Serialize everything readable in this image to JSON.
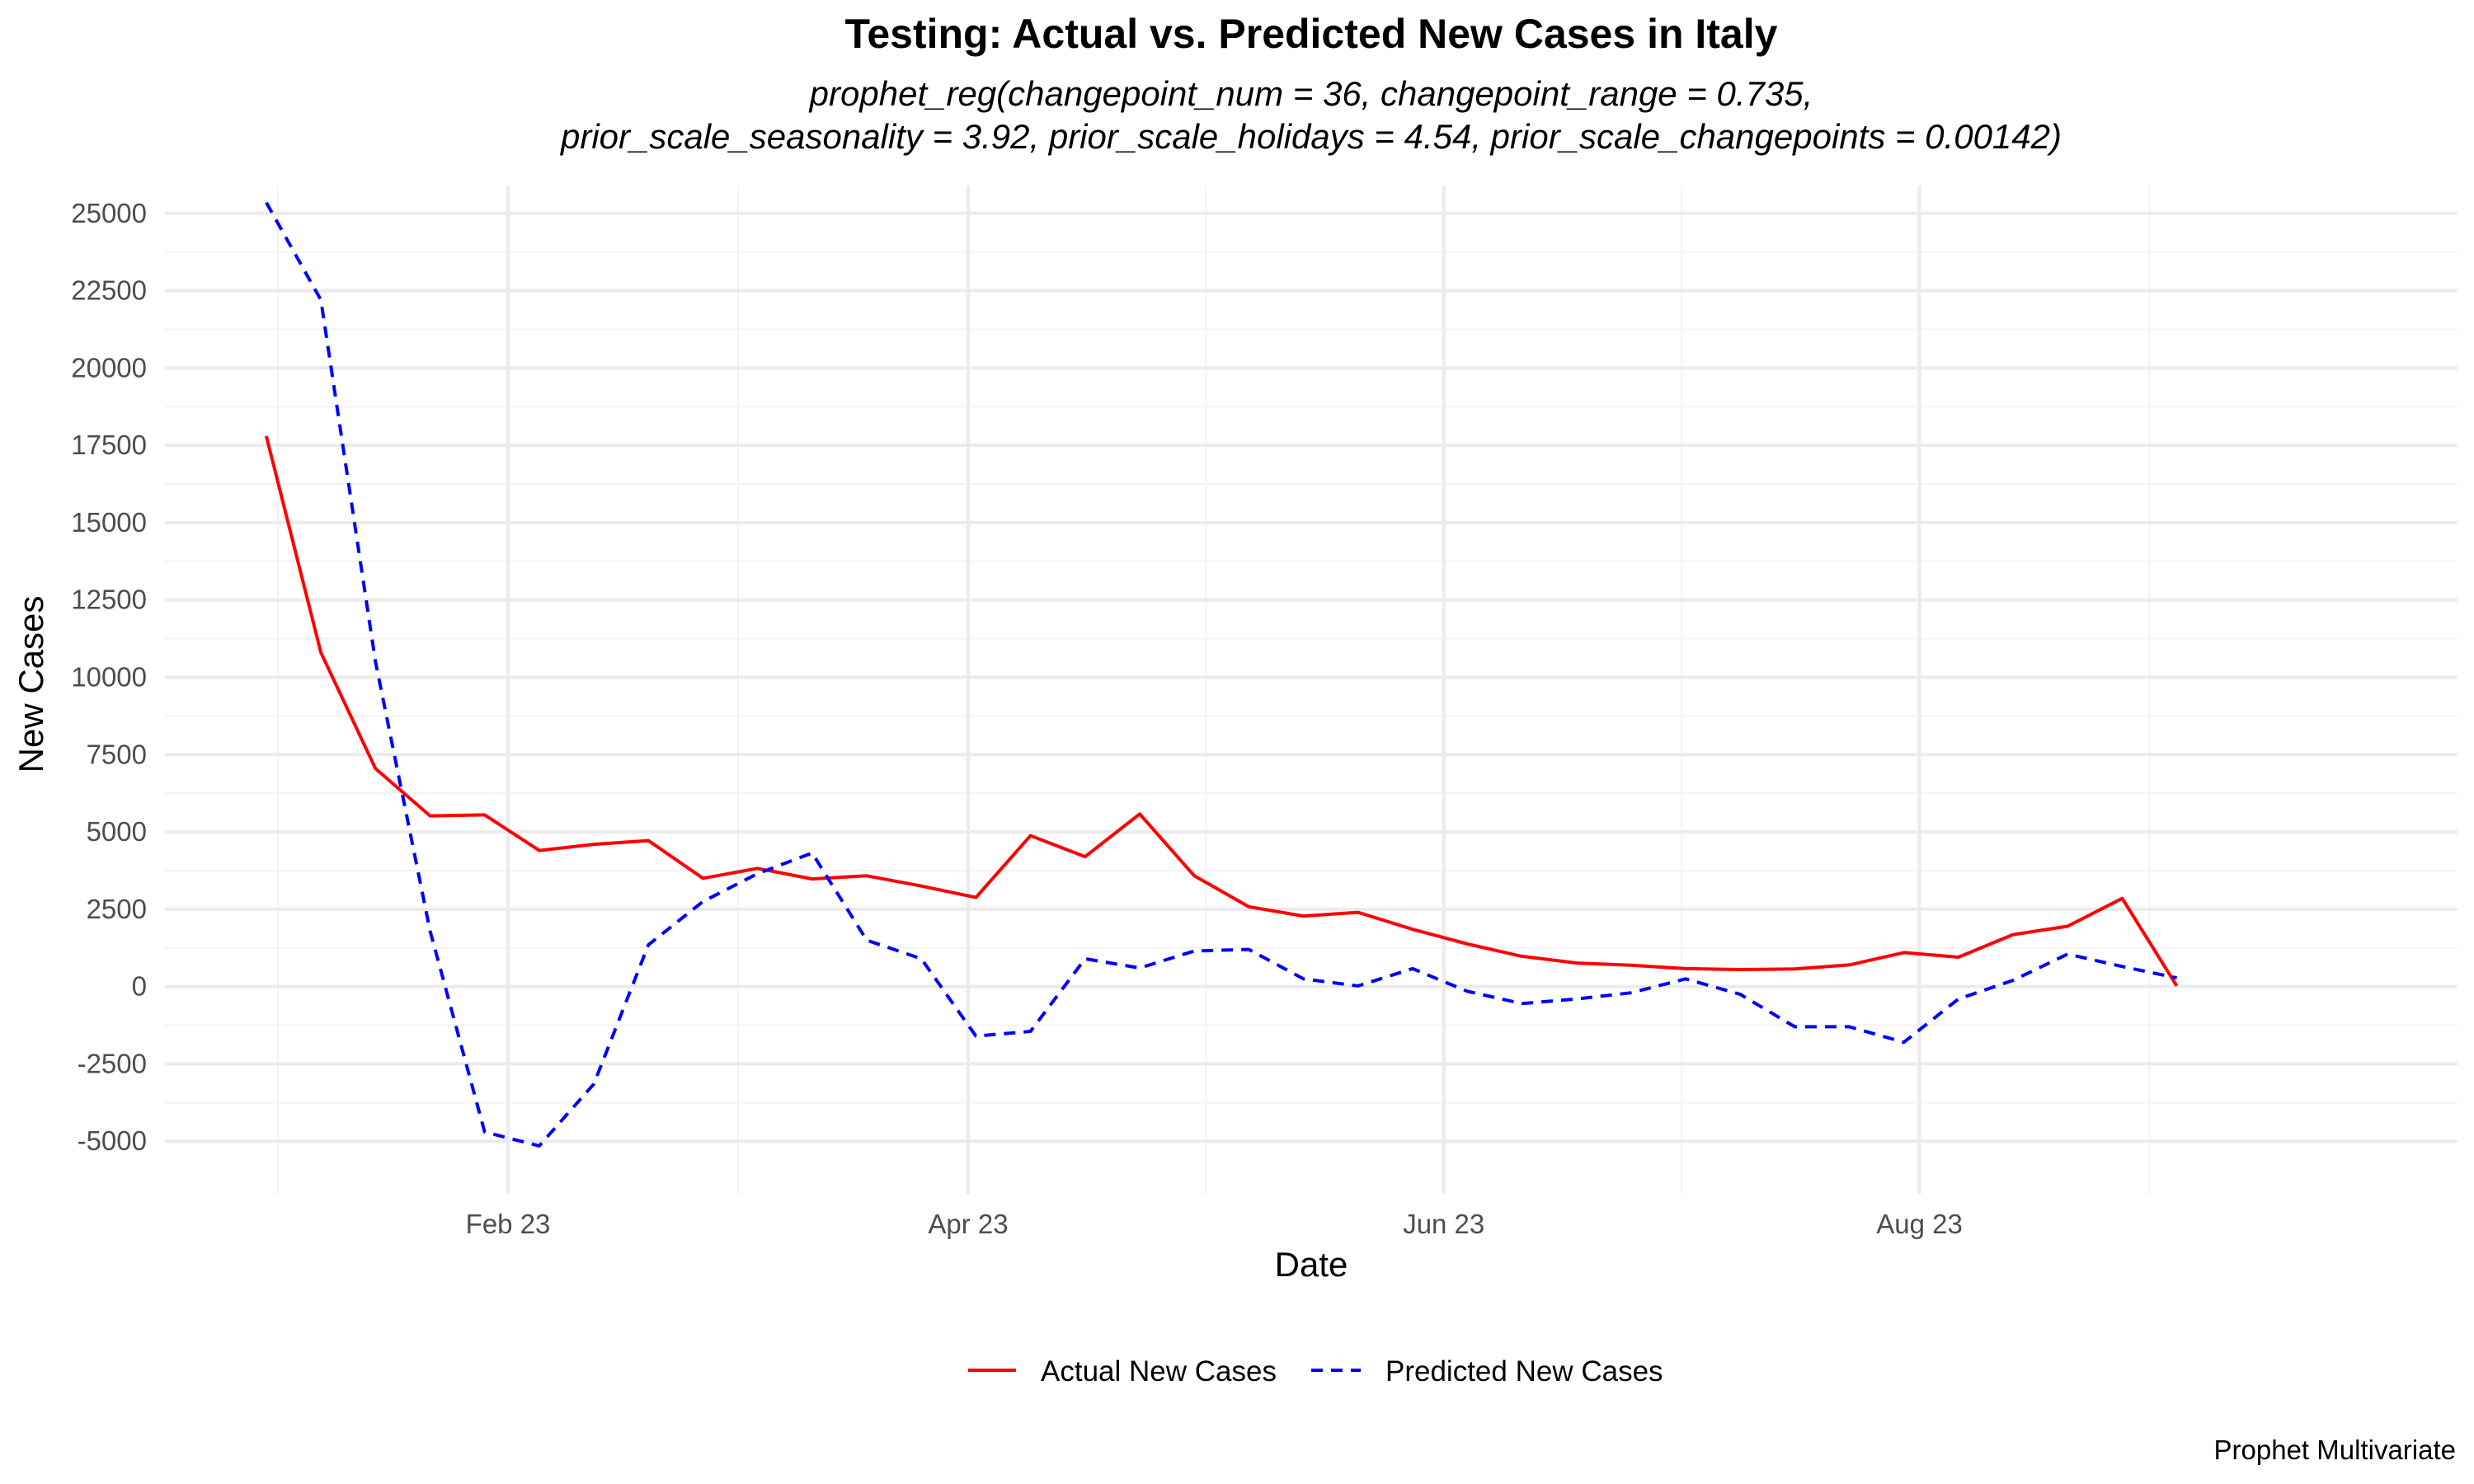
{
  "chart_data": {
    "type": "line",
    "title": "Testing: Actual vs. Predicted New Cases in Italy",
    "subtitle_lines": [
      "prophet_reg(changepoint_num = 36, changepoint_range = 0.735,",
      "prior_scale_seasonality = 3.92, prior_scale_holidays = 4.54, prior_scale_changepoints = 0.00142)"
    ],
    "xlabel": "Date",
    "ylabel": "New Cases",
    "caption": "Prophet Multivariate",
    "x_ticks": [
      {
        "label": "Feb 23",
        "date": "2023-02-01"
      },
      {
        "label": "Apr 23",
        "date": "2023-04-01"
      },
      {
        "label": "Jun 23",
        "date": "2023-06-01"
      },
      {
        "label": "Aug 23",
        "date": "2023-08-01"
      }
    ],
    "y_ticks": [
      -5000,
      -2500,
      0,
      2500,
      5000,
      7500,
      10000,
      12500,
      15000,
      17500,
      20000,
      22500,
      25000
    ],
    "xlim": [
      "2022-12-19",
      "2023-10-09"
    ],
    "ylim": [
      -6700,
      25900
    ],
    "grid": true,
    "legend_position": "bottom",
    "x": [
      "2023-01-01",
      "2023-01-08",
      "2023-01-15",
      "2023-01-22",
      "2023-01-29",
      "2023-02-05",
      "2023-02-12",
      "2023-02-19",
      "2023-02-26",
      "2023-03-05",
      "2023-03-12",
      "2023-03-19",
      "2023-03-26",
      "2023-04-02",
      "2023-04-09",
      "2023-04-16",
      "2023-04-23",
      "2023-04-30",
      "2023-05-07",
      "2023-05-14",
      "2023-05-21",
      "2023-05-28",
      "2023-06-04",
      "2023-06-11",
      "2023-06-18",
      "2023-06-25",
      "2023-07-02",
      "2023-07-09",
      "2023-07-16",
      "2023-07-23",
      "2023-07-30",
      "2023-08-06",
      "2023-08-13",
      "2023-08-20",
      "2023-08-27",
      "2023-09-03",
      "2023-09-10",
      "2023-09-17"
    ],
    "series": [
      {
        "name": "Actual New Cases",
        "color": "#ff0000",
        "dash": "solid",
        "values": [
          17800,
          10800,
          7050,
          5520,
          5550,
          4400,
          4600,
          4720,
          3500,
          3820,
          3480,
          3580,
          3250,
          2880,
          4880,
          4200,
          5580,
          3580,
          2580,
          2280,
          2400,
          1850,
          1380,
          980,
          760,
          690,
          580,
          550,
          570,
          700,
          1100,
          950,
          1680,
          1950,
          2850,
          20,
          null,
          null
        ]
      },
      {
        "name": "Predicted New Cases",
        "color": "#0000ff",
        "dash": "dashed",
        "values": [
          25350,
          22200,
          10500,
          1800,
          -4700,
          -5150,
          -3150,
          1350,
          2750,
          3650,
          4320,
          1500,
          900,
          -1600,
          -1450,
          900,
          600,
          1150,
          1200,
          250,
          20,
          580,
          -150,
          -550,
          -400,
          -200,
          250,
          -250,
          -1300,
          -1300,
          -1800,
          -400,
          200,
          1050,
          650,
          280,
          null,
          null
        ]
      }
    ]
  }
}
